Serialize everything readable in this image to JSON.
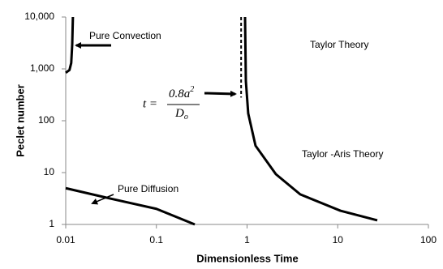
{
  "chart_data": {
    "type": "line",
    "xlabel": "Dimensionless Time",
    "ylabel": "Peclet number",
    "xscale": "log",
    "yscale": "log",
    "xlim": [
      0.01,
      100
    ],
    "ylim": [
      1,
      10000
    ],
    "xticks": [
      0.01,
      0.1,
      1,
      10,
      100
    ],
    "yticks": [
      1,
      10,
      100,
      {
        "value": 1000,
        "label": "1,000"
      },
      {
        "value": 10000,
        "label": "10,000"
      }
    ],
    "series": [
      {
        "color": "#000000",
        "x": [
          0.01,
          0.011,
          0.0115,
          0.0118,
          0.012
        ],
        "values": [
          840,
          950,
          1300,
          3000,
          10000
        ]
      },
      {
        "color": "#000000",
        "x": [
          0.01,
          0.03,
          0.1,
          0.265
        ],
        "values": [
          5,
          3.2,
          2,
          1
        ]
      },
      {
        "color": "#000000",
        "x": [
          0.95,
          0.97,
          1.03,
          1.24,
          2.08,
          3.86,
          10.7,
          27.3
        ],
        "values": [
          10000,
          580,
          138,
          33,
          9.3,
          3.8,
          1.84,
          1.2
        ]
      },
      {
        "color": "#000000",
        "dashed": true,
        "x": [
          0.86,
          0.86
        ],
        "values": [
          10000,
          280
        ]
      }
    ],
    "annotations": [
      "Pure Convection",
      "Pure Diffusion",
      "Taylor Theory",
      "Taylor -Aris Theory"
    ],
    "formula": {
      "lhs": "t =",
      "numerator": "0.8a",
      "exponent": "2",
      "denominator": "D",
      "subscript": "o"
    }
  }
}
